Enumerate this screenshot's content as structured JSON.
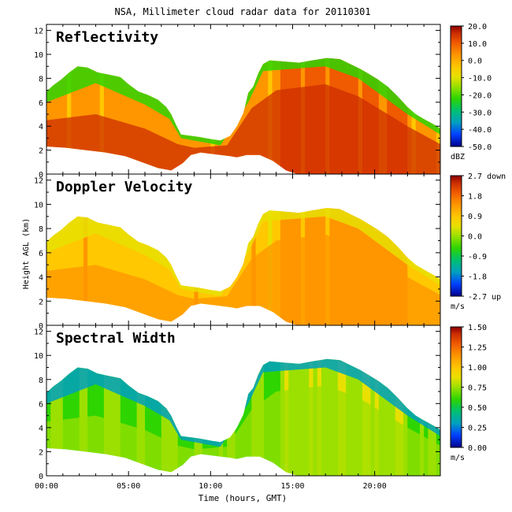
{
  "chart_data": {
    "type": "heatmap",
    "title": "NSA, Millimeter cloud radar data for 20110301",
    "xlabel": "Time (hours, GMT)",
    "ylabel": "Height AGL (km)",
    "xlim": [
      0,
      24
    ],
    "ylim": [
      0,
      12.5
    ],
    "x_ticks": [
      0,
      5,
      10,
      15,
      20
    ],
    "x_tick_labels": [
      "00:00",
      "05:00",
      "10:00",
      "15:00",
      "20:00"
    ],
    "y_ticks": [
      0,
      2,
      4,
      6,
      8,
      10,
      12
    ],
    "y_tick_labels": [
      "0",
      "2",
      "4",
      "6",
      "8",
      "10",
      "12"
    ],
    "panels": [
      {
        "title": "Reflectivity",
        "unit": "dBZ",
        "colorbar_ticks": [
          "20.0",
          "10.0",
          "0.0",
          "-10.0",
          "-20.0",
          "-30.0",
          "-40.0",
          "-50.0"
        ],
        "colors": [
          "#00008b",
          "#0040ff",
          "#00a0c0",
          "#00c070",
          "#2ed500",
          "#9be000",
          "#e8e000",
          "#ffc800",
          "#ff9600",
          "#f05a00",
          "#cd2d00",
          "#8b0000"
        ]
      },
      {
        "title": "Doppler Velocity",
        "unit": "m/s",
        "colorbar_ticks": [
          "2.7 down",
          "1.8",
          "0.9",
          "0.0",
          "-0.9",
          "-1.8",
          "-2.7 up"
        ],
        "colors": [
          "#00008b",
          "#0040ff",
          "#00a0c0",
          "#00c070",
          "#2ed500",
          "#9be000",
          "#e8e000",
          "#ffc800",
          "#ff9600",
          "#f05a00",
          "#cd2d00",
          "#8b0000"
        ]
      },
      {
        "title": "Spectral Width",
        "unit": "m/s",
        "colorbar_ticks": [
          "1.50",
          "1.25",
          "1.00",
          "0.75",
          "0.50",
          "0.25",
          "0.00"
        ],
        "colors": [
          "#00008b",
          "#0040ff",
          "#00a0c0",
          "#00c070",
          "#2ed500",
          "#9be000",
          "#e8e000",
          "#ffc800",
          "#ff9600",
          "#f05a00",
          "#cd2d00",
          "#8b0000"
        ]
      }
    ]
  }
}
